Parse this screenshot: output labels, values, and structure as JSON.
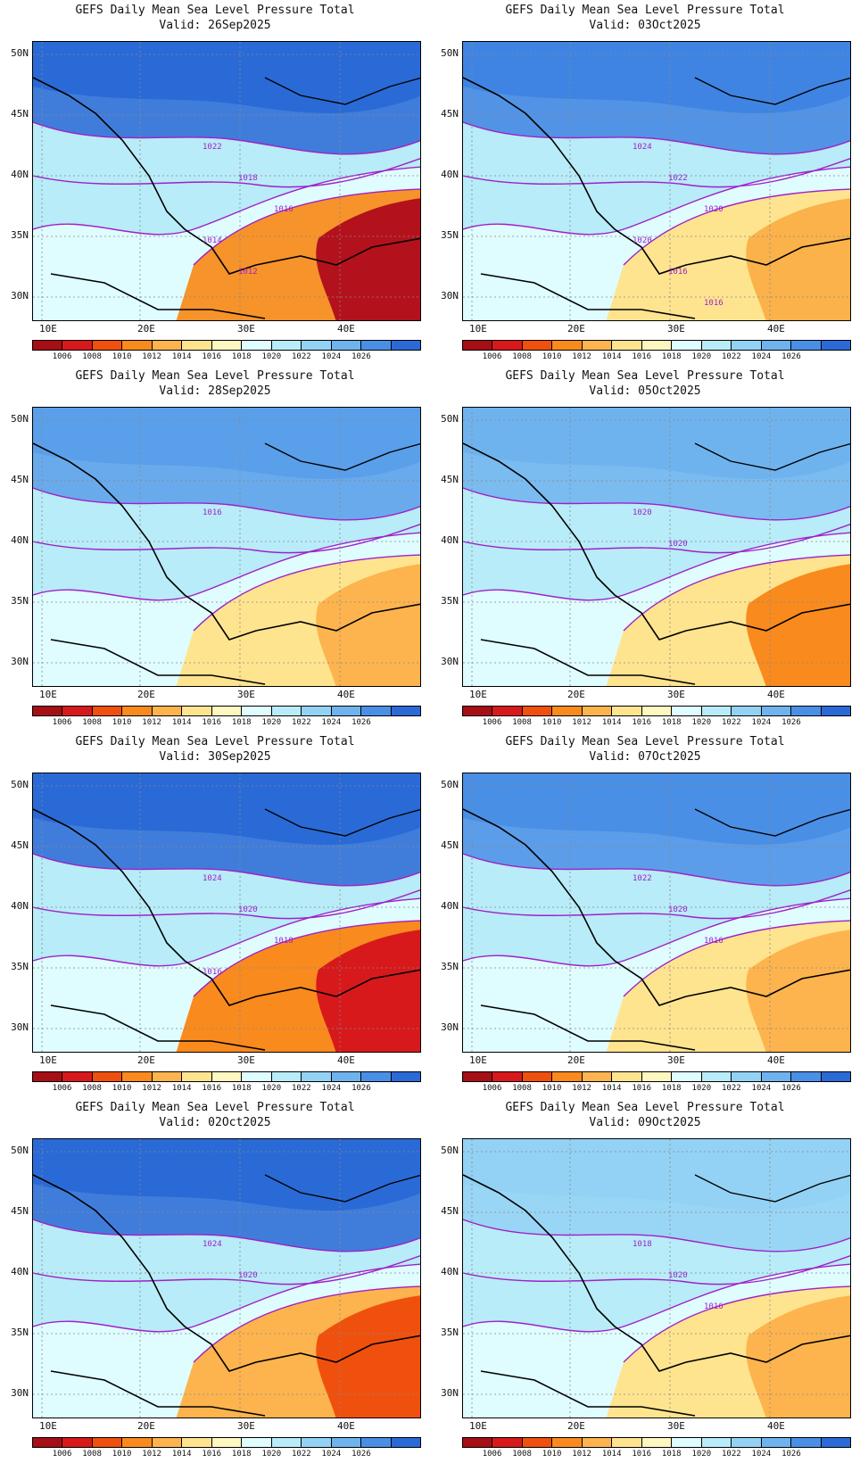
{
  "colorbar": {
    "levels": [
      "1006",
      "1008",
      "1010",
      "1012",
      "1014",
      "1016",
      "1018",
      "1020",
      "1022",
      "1024",
      "1026"
    ],
    "colors": [
      "#a50f15",
      "#d7191c",
      "#f0500e",
      "#f98a1e",
      "#fdb44e",
      "#fee48f",
      "#fff7c0",
      "#dffcff",
      "#b8ecf8",
      "#93d2f4",
      "#6fb3ee",
      "#4a8fe6",
      "#2a6ad6"
    ]
  },
  "axes": {
    "lat_labels": [
      "50N",
      "45N",
      "40N",
      "35N",
      "30N"
    ],
    "lon_labels": [
      "10E",
      "20E",
      "30E",
      "40E"
    ]
  },
  "panels": [
    {
      "title": "GEFS Daily Mean Sea Level Pressure Total",
      "valid": "Valid: 26Sep2025",
      "contour_labels": [
        "1022",
        "1018",
        "1016",
        "1014",
        "1012"
      ],
      "low": "#b3121c",
      "mid": "#f6932a",
      "north": "#2a6ad6"
    },
    {
      "title": "GEFS Daily Mean Sea Level Pressure Total",
      "valid": "Valid: 03Oct2025",
      "contour_labels": [
        "1024",
        "1022",
        "1020",
        "1020",
        "1016",
        "1016"
      ],
      "low": "#fbb24a",
      "mid": "#fee48f",
      "north": "#3f84e2"
    },
    {
      "title": "GEFS Daily Mean Sea Level Pressure Total",
      "valid": "Valid: 28Sep2025",
      "contour_labels": [
        "1016"
      ],
      "low": "#fdb44e",
      "mid": "#fee48f",
      "north": "#5a9fea"
    },
    {
      "title": "GEFS Daily Mean Sea Level Pressure Total",
      "valid": "Valid: 05Oct2025",
      "contour_labels": [
        "1020",
        "1020"
      ],
      "low": "#f98a1e",
      "mid": "#fee48f",
      "north": "#6fb3ee"
    },
    {
      "title": "GEFS Daily Mean Sea Level Pressure Total",
      "valid": "Valid: 30Sep2025",
      "contour_labels": [
        "1024",
        "1020",
        "1018",
        "1016"
      ],
      "low": "#d7191c",
      "mid": "#f98a1e",
      "north": "#2a6ad6"
    },
    {
      "title": "GEFS Daily Mean Sea Level Pressure Total",
      "valid": "Valid: 07Oct2025",
      "contour_labels": [
        "1022",
        "1020",
        "1016"
      ],
      "low": "#fdb44e",
      "mid": "#fee48f",
      "north": "#4a8fe6"
    },
    {
      "title": "GEFS Daily Mean Sea Level Pressure Total",
      "valid": "Valid: 02Oct2025",
      "contour_labels": [
        "1024",
        "1020"
      ],
      "low": "#f0500e",
      "mid": "#fdb44e",
      "north": "#2a6ad6"
    },
    {
      "title": "GEFS Daily Mean Sea Level Pressure Total",
      "valid": "Valid: 09Oct2025",
      "contour_labels": [
        "1018",
        "1020",
        "1016"
      ],
      "low": "#fdb44e",
      "mid": "#fee48f",
      "north": "#93d2f4"
    }
  ]
}
